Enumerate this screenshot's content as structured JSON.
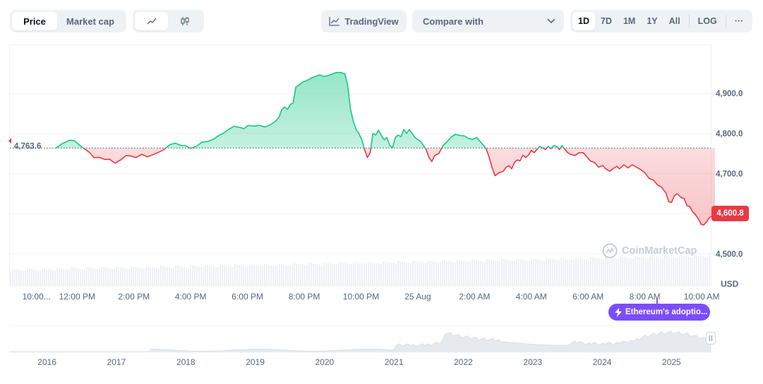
{
  "toolbar": {
    "metric_tabs": [
      {
        "label": "Price",
        "active": true
      },
      {
        "label": "Market cap",
        "active": false
      }
    ],
    "chart_types": [
      {
        "icon": "line-chart-icon",
        "active": true
      },
      {
        "icon": "candlestick-icon",
        "active": false
      }
    ],
    "tradingview_label": "TradingView",
    "compare_label": "Compare with",
    "ranges": [
      "1D",
      "7D",
      "1M",
      "1Y",
      "All"
    ],
    "active_range": "1D",
    "log_label": "LOG",
    "more_label": "···"
  },
  "price": {
    "reference_label": "4,763.6",
    "last_label": "4,600.8",
    "currency": "USD"
  },
  "watermark": "CoinMarketCap",
  "news": {
    "label": "Ethereum's adoptio..."
  },
  "chart_data": {
    "type": "line",
    "yticks": [
      {
        "value": 4500,
        "label": "4,500.0"
      },
      {
        "value": 4600,
        "label": "4,600.0"
      },
      {
        "value": 4700,
        "label": "4,700.0"
      },
      {
        "value": 4800,
        "label": "4,800.0"
      },
      {
        "value": 4900,
        "label": "4,900.0"
      }
    ],
    "ylim": [
      4420,
      5020
    ],
    "xlim": [
      0,
      1000
    ],
    "reference_price": 4763.6,
    "last_price": 4600.8,
    "xticks": [
      {
        "x": 38,
        "label": "10:00..."
      },
      {
        "x": 96,
        "label": "12:00 PM"
      },
      {
        "x": 177,
        "label": "2:00 PM"
      },
      {
        "x": 258,
        "label": "4:00 PM"
      },
      {
        "x": 339,
        "label": "6:00 PM"
      },
      {
        "x": 420,
        "label": "8:00 PM"
      },
      {
        "x": 501,
        "label": "10:00 PM"
      },
      {
        "x": 582,
        "label": "25 Aug"
      },
      {
        "x": 663,
        "label": "2:00 AM"
      },
      {
        "x": 744,
        "label": "4:00 AM"
      },
      {
        "x": 825,
        "label": "6:00 AM"
      },
      {
        "x": 906,
        "label": "8:00 AM"
      },
      {
        "x": 987,
        "label": "10:00 AM"
      }
    ],
    "series": [
      {
        "points": [
          [
            65,
            4763
          ],
          [
            75,
            4775
          ],
          [
            85,
            4783
          ],
          [
            92,
            4782
          ],
          [
            100,
            4770
          ],
          [
            108,
            4760
          ],
          [
            114,
            4752
          ],
          [
            120,
            4740
          ],
          [
            128,
            4740
          ],
          [
            136,
            4735
          ],
          [
            142,
            4736
          ],
          [
            150,
            4726
          ],
          [
            158,
            4734
          ],
          [
            166,
            4745
          ],
          [
            172,
            4744
          ],
          [
            180,
            4740
          ],
          [
            188,
            4748
          ],
          [
            196,
            4742
          ],
          [
            204,
            4747
          ],
          [
            212,
            4753
          ],
          [
            220,
            4760
          ],
          [
            228,
            4772
          ],
          [
            236,
            4776
          ],
          [
            244,
            4770
          ],
          [
            250,
            4770
          ],
          [
            258,
            4763
          ],
          [
            266,
            4768
          ],
          [
            274,
            4778
          ],
          [
            282,
            4780
          ],
          [
            290,
            4785
          ],
          [
            298,
            4795
          ],
          [
            304,
            4800
          ],
          [
            312,
            4810
          ],
          [
            320,
            4818
          ],
          [
            328,
            4815
          ],
          [
            334,
            4812
          ],
          [
            340,
            4820
          ],
          [
            348,
            4818
          ],
          [
            356,
            4820
          ],
          [
            364,
            4816
          ],
          [
            372,
            4822
          ],
          [
            380,
            4832
          ],
          [
            384,
            4840
          ],
          [
            388,
            4860
          ],
          [
            392,
            4866
          ],
          [
            396,
            4860
          ],
          [
            400,
            4872
          ],
          [
            404,
            4876
          ],
          [
            408,
            4915
          ],
          [
            412,
            4920
          ],
          [
            418,
            4928
          ],
          [
            424,
            4932
          ],
          [
            430,
            4938
          ],
          [
            436,
            4942
          ],
          [
            442,
            4946
          ],
          [
            448,
            4942
          ],
          [
            454,
            4944
          ],
          [
            460,
            4948
          ],
          [
            466,
            4952
          ],
          [
            472,
            4952
          ],
          [
            478,
            4948
          ],
          [
            482,
            4920
          ],
          [
            486,
            4860
          ],
          [
            490,
            4830
          ],
          [
            494,
            4810
          ],
          [
            498,
            4800
          ],
          [
            502,
            4785
          ],
          [
            506,
            4760
          ],
          [
            510,
            4740
          ],
          [
            514,
            4752
          ],
          [
            518,
            4800
          ],
          [
            522,
            4796
          ],
          [
            526,
            4808
          ],
          [
            530,
            4795
          ],
          [
            534,
            4784
          ],
          [
            538,
            4790
          ],
          [
            542,
            4770
          ],
          [
            546,
            4765
          ],
          [
            550,
            4790
          ],
          [
            554,
            4796
          ],
          [
            558,
            4792
          ],
          [
            562,
            4810
          ],
          [
            566,
            4800
          ],
          [
            570,
            4810
          ],
          [
            574,
            4800
          ],
          [
            578,
            4790
          ],
          [
            582,
            4785
          ],
          [
            586,
            4780
          ],
          [
            590,
            4770
          ],
          [
            594,
            4760
          ],
          [
            598,
            4740
          ],
          [
            602,
            4730
          ],
          [
            606,
            4745
          ],
          [
            612,
            4750
          ],
          [
            618,
            4770
          ],
          [
            624,
            4780
          ],
          [
            630,
            4792
          ],
          [
            636,
            4798
          ],
          [
            642,
            4795
          ],
          [
            648,
            4794
          ],
          [
            654,
            4788
          ],
          [
            660,
            4785
          ],
          [
            666,
            4790
          ],
          [
            670,
            4782
          ],
          [
            676,
            4770
          ],
          [
            680,
            4760
          ],
          [
            684,
            4740
          ],
          [
            688,
            4715
          ],
          [
            692,
            4695
          ],
          [
            698,
            4702
          ],
          [
            704,
            4706
          ],
          [
            708,
            4716
          ],
          [
            712,
            4720
          ],
          [
            716,
            4712
          ],
          [
            720,
            4728
          ],
          [
            724,
            4734
          ],
          [
            728,
            4732
          ],
          [
            732,
            4746
          ],
          [
            736,
            4740
          ],
          [
            740,
            4746
          ],
          [
            744,
            4758
          ],
          [
            748,
            4752
          ],
          [
            752,
            4760
          ],
          [
            756,
            4768
          ],
          [
            760,
            4764
          ],
          [
            764,
            4760
          ],
          [
            768,
            4768
          ],
          [
            772,
            4762
          ],
          [
            776,
            4770
          ],
          [
            780,
            4768
          ],
          [
            784,
            4760
          ],
          [
            788,
            4770
          ],
          [
            792,
            4760
          ],
          [
            796,
            4752
          ],
          [
            800,
            4748
          ],
          [
            806,
            4745
          ],
          [
            812,
            4752
          ],
          [
            818,
            4752
          ],
          [
            824,
            4740
          ],
          [
            828,
            4732
          ],
          [
            834,
            4728
          ],
          [
            840,
            4716
          ],
          [
            846,
            4720
          ],
          [
            850,
            4712
          ],
          [
            856,
            4706
          ],
          [
            862,
            4714
          ],
          [
            866,
            4718
          ],
          [
            870,
            4712
          ],
          [
            876,
            4722
          ],
          [
            882,
            4714
          ],
          [
            888,
            4722
          ],
          [
            894,
            4716
          ],
          [
            900,
            4710
          ],
          [
            906,
            4702
          ],
          [
            912,
            4688
          ],
          [
            918,
            4684
          ],
          [
            924,
            4672
          ],
          [
            930,
            4666
          ],
          [
            936,
            4652
          ],
          [
            940,
            4630
          ],
          [
            944,
            4628
          ],
          [
            948,
            4645
          ],
          [
            952,
            4650
          ],
          [
            958,
            4640
          ],
          [
            962,
            4638
          ],
          [
            966,
            4620
          ],
          [
            970,
            4618
          ],
          [
            974,
            4605
          ],
          [
            978,
            4598
          ],
          [
            982,
            4588
          ],
          [
            986,
            4574
          ],
          [
            990,
            4572
          ],
          [
            994,
            4580
          ],
          [
            998,
            4590
          ],
          [
            1002,
            4595
          ],
          [
            1006,
            4600.8
          ]
        ]
      }
    ],
    "overview": {
      "xticks": [
        {
          "x": 53,
          "label": "2016"
        },
        {
          "x": 152,
          "label": "2017"
        },
        {
          "x": 251,
          "label": "2018"
        },
        {
          "x": 350,
          "label": "2019"
        },
        {
          "x": 449,
          "label": "2020"
        },
        {
          "x": 548,
          "label": "2021"
        },
        {
          "x": 647,
          "label": "2022"
        },
        {
          "x": 746,
          "label": "2023"
        },
        {
          "x": 845,
          "label": "2024"
        },
        {
          "x": 944,
          "label": "2025"
        }
      ]
    }
  }
}
